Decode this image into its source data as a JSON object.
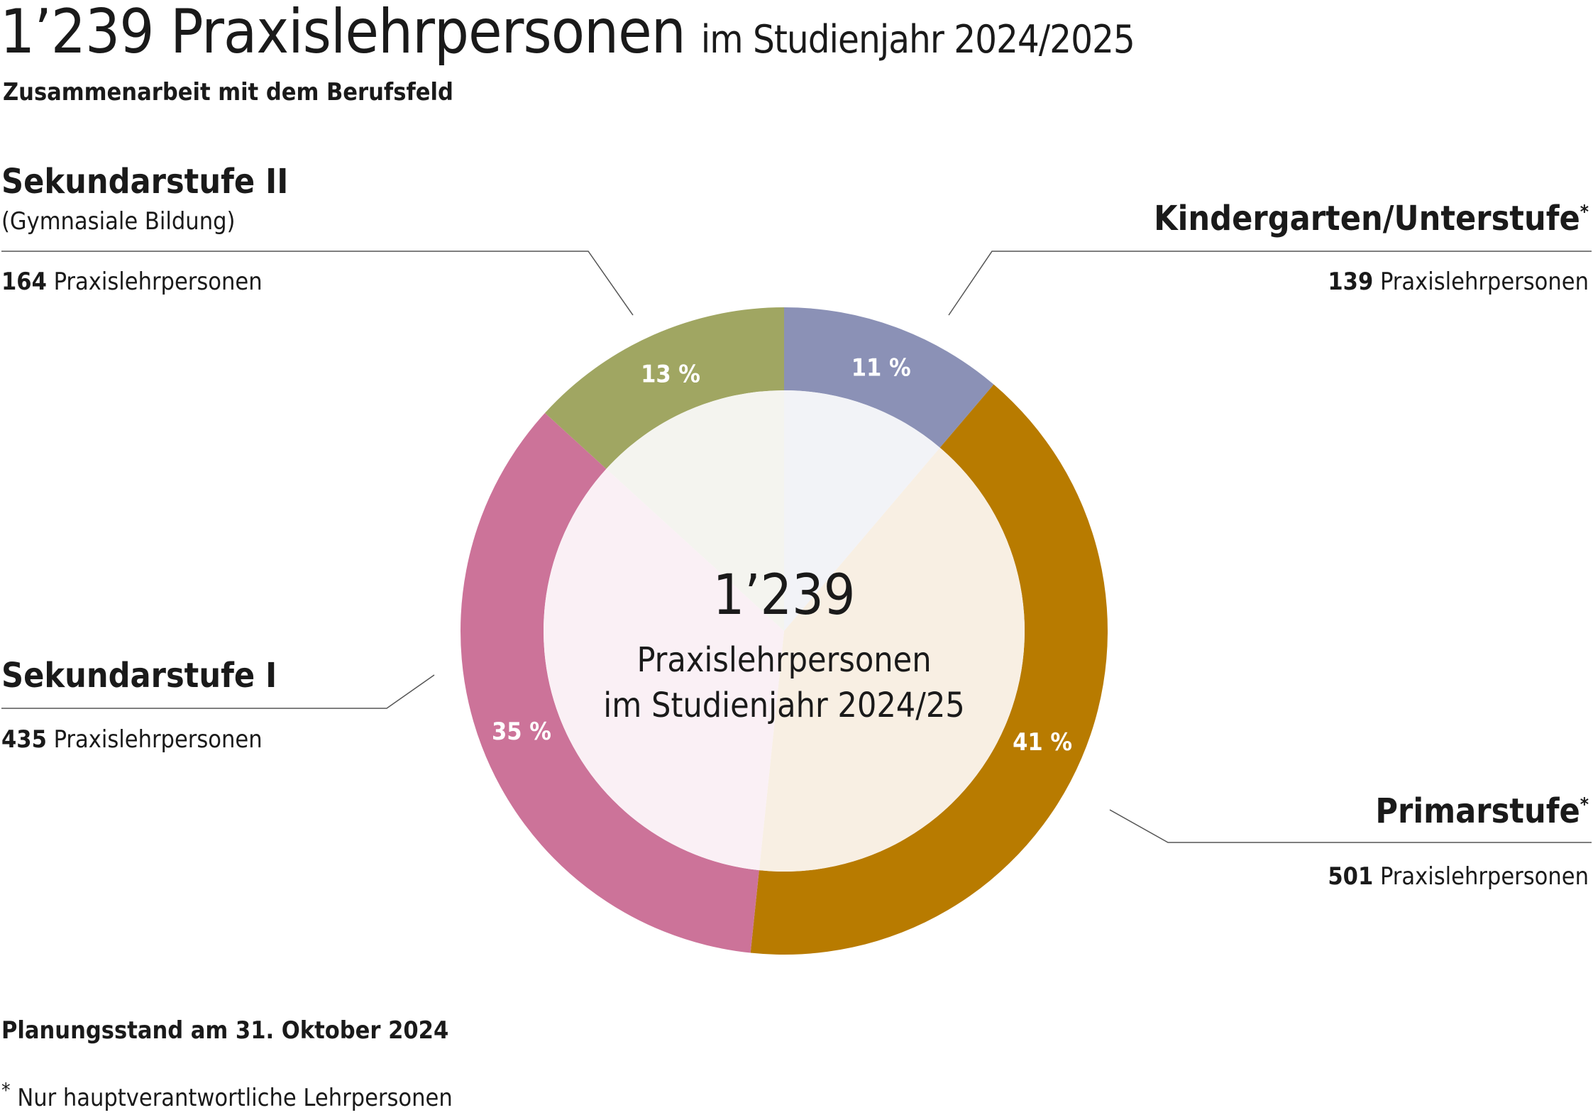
{
  "header": {
    "title_main": "1’239 Praxislehrpersonen",
    "title_sub": "im Studienjahr 2024/2025",
    "subtitle": "Zusammenarbeit mit dem Berufsfeld"
  },
  "center": {
    "number": "1’239",
    "line1": "Praxislehrpersonen",
    "line2": "im Studienjahr 2024/25"
  },
  "count_unit": "Praxislehrpersonen",
  "chart_data": {
    "type": "pie",
    "total": 1239,
    "slices": [
      {
        "name": "Kindergarten/Unterstufe",
        "footnote_mark": "*",
        "value": 139,
        "count_label": "139",
        "percent_label": "11 %",
        "color": "#8b91b6",
        "inner_color": "#f2f3f7"
      },
      {
        "name": "Primarstufe",
        "footnote_mark": "*",
        "value": 501,
        "count_label": "501",
        "percent_label": "41 %",
        "color": "#b87b00",
        "inner_color": "#f8efe3"
      },
      {
        "name": "Sekundarstufe I",
        "footnote_mark": "",
        "value": 435,
        "count_label": "435",
        "percent_label": "35 %",
        "color": "#cc7399",
        "inner_color": "#faf0f5"
      },
      {
        "name": "Sekundarstufe II",
        "footnote_mark": "",
        "sub_label": "(Gymnasiale Bildung)",
        "value": 164,
        "count_label": "164",
        "percent_label": "13 %",
        "color": "#a0a662",
        "inner_color": "#f4f4ef"
      }
    ]
  },
  "footer": {
    "stand": "Planungsstand am 31. Oktober 2024",
    "note_mark": "*",
    "note": "Nur hauptverantwortliche Lehrpersonen"
  }
}
